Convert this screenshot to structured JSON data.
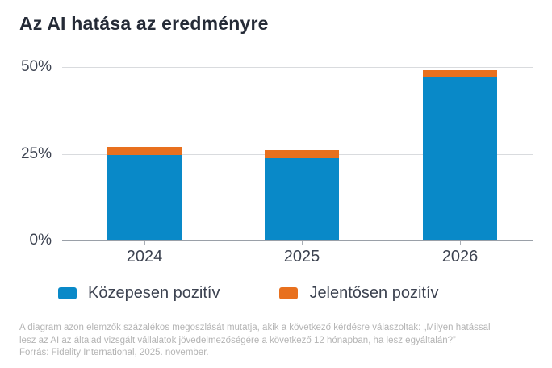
{
  "title": "Az AI hatása az eredményre",
  "chart_data": {
    "type": "bar",
    "stacked": true,
    "title": "Az AI hatása az eredményre",
    "categories": [
      "2024",
      "2025",
      "2026"
    ],
    "series": [
      {
        "name": "Közepesen pozitív",
        "color": "#0989c8",
        "values": [
          24.7,
          23.7,
          47.3
        ]
      },
      {
        "name": "Jelentősen pozitív",
        "color": "#e8701e",
        "values": [
          2.3,
          2.3,
          1.7
        ]
      }
    ],
    "totals": [
      27,
      26,
      49
    ],
    "xlabel": "",
    "ylabel": "",
    "ylim": [
      0,
      50
    ],
    "y_ticks": [
      "0%",
      "25%",
      "50%"
    ],
    "y_tick_values": [
      0,
      25,
      50
    ],
    "grid": true,
    "legend_position": "bottom"
  },
  "footnote": {
    "line1": "A diagram azon elemzők százalékos megoszlását mutatja, akik a következő kérdésre válaszoltak: „Milyen hatással",
    "line2": "lesz az AI az általad vizsgált vállalatok jövedelmezőségére a következő 12 hónapban, ha lesz egyáltalán?”",
    "line3": "Forrás: Fidelity International, 2025. november."
  }
}
